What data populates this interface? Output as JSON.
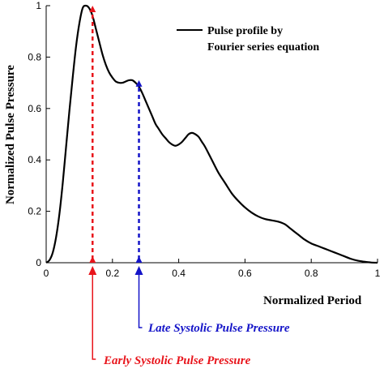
{
  "chart_data": {
    "type": "line",
    "xlabel": "Normalized Period",
    "ylabel": "Normalized Pulse Pressure",
    "xlim": [
      0,
      1
    ],
    "ylim": [
      0,
      1
    ],
    "x_ticks": [
      {
        "value": 0,
        "label": "0"
      },
      {
        "value": 0.2,
        "label": "0.2"
      },
      {
        "value": 0.4,
        "label": "0.4"
      },
      {
        "value": 0.6,
        "label": "0.6"
      },
      {
        "value": 0.8,
        "label": "0.8"
      },
      {
        "value": 1,
        "label": "1"
      }
    ],
    "y_ticks": [
      {
        "value": 0,
        "label": "0"
      },
      {
        "value": 0.2,
        "label": "0.2"
      },
      {
        "value": 0.4,
        "label": "0.4"
      },
      {
        "value": 0.6,
        "label": "0.6"
      },
      {
        "value": 0.8,
        "label": "0.8"
      },
      {
        "value": 1,
        "label": "1"
      }
    ],
    "grid": false,
    "legend": {
      "position": "top-right",
      "lines": [
        "Pulse profile by",
        "Fourier series equation"
      ]
    },
    "series": [
      {
        "name": "Pulse profile by Fourier series equation",
        "color": "#000000",
        "x": [
          0,
          0.01,
          0.02,
          0.03,
          0.04,
          0.05,
          0.06,
          0.07,
          0.08,
          0.09,
          0.1,
          0.11,
          0.12,
          0.13,
          0.14,
          0.15,
          0.16,
          0.17,
          0.18,
          0.19,
          0.2,
          0.21,
          0.22,
          0.23,
          0.24,
          0.25,
          0.26,
          0.27,
          0.28,
          0.29,
          0.3,
          0.31,
          0.32,
          0.33,
          0.34,
          0.35,
          0.36,
          0.37,
          0.38,
          0.39,
          0.4,
          0.41,
          0.42,
          0.43,
          0.44,
          0.45,
          0.46,
          0.47,
          0.48,
          0.5,
          0.52,
          0.54,
          0.56,
          0.58,
          0.6,
          0.62,
          0.64,
          0.66,
          0.68,
          0.7,
          0.72,
          0.74,
          0.76,
          0.78,
          0.8,
          0.82,
          0.84,
          0.86,
          0.88,
          0.9,
          0.92,
          0.94,
          0.96,
          0.98,
          1.0
        ],
        "y": [
          0.0,
          0.01,
          0.04,
          0.1,
          0.19,
          0.31,
          0.45,
          0.59,
          0.72,
          0.84,
          0.93,
          0.99,
          1.0,
          0.99,
          0.96,
          0.91,
          0.86,
          0.81,
          0.77,
          0.74,
          0.72,
          0.705,
          0.7,
          0.7,
          0.705,
          0.71,
          0.71,
          0.7,
          0.685,
          0.66,
          0.63,
          0.6,
          0.57,
          0.54,
          0.52,
          0.5,
          0.485,
          0.47,
          0.46,
          0.455,
          0.46,
          0.47,
          0.485,
          0.5,
          0.505,
          0.5,
          0.49,
          0.47,
          0.45,
          0.4,
          0.35,
          0.31,
          0.27,
          0.24,
          0.215,
          0.195,
          0.18,
          0.17,
          0.165,
          0.16,
          0.15,
          0.13,
          0.11,
          0.09,
          0.075,
          0.065,
          0.055,
          0.045,
          0.035,
          0.025,
          0.015,
          0.008,
          0.004,
          0.001,
          0.0
        ]
      }
    ],
    "annotations": [
      {
        "label": "Early Systolic Pulse Pressure",
        "x": 0.14,
        "y_top": 1.0,
        "color": "#e8141b"
      },
      {
        "label": "Late Systolic Pulse Pressure",
        "x": 0.28,
        "y_top": 0.71,
        "color": "#1414c8"
      }
    ]
  }
}
